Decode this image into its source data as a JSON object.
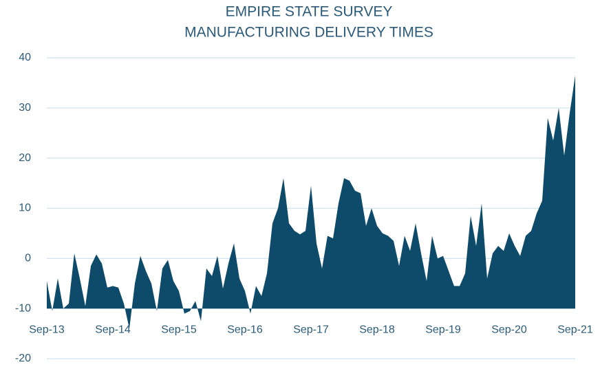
{
  "chart_data": {
    "type": "area",
    "title": [
      "EMPIRE STATE SURVEY",
      "MANUFACTURING  DELIVERY TIMES"
    ],
    "categories": [
      "Sep-13",
      null,
      null,
      null,
      null,
      null,
      null,
      null,
      null,
      null,
      null,
      null,
      "Sep-14",
      null,
      null,
      null,
      null,
      null,
      null,
      null,
      null,
      null,
      null,
      null,
      "Sep-15",
      null,
      null,
      null,
      null,
      null,
      null,
      null,
      null,
      null,
      null,
      null,
      "Sep-16",
      null,
      null,
      null,
      null,
      null,
      null,
      null,
      null,
      null,
      null,
      null,
      "Sep-17",
      null,
      null,
      null,
      null,
      null,
      null,
      null,
      null,
      null,
      null,
      null,
      "Sep-18",
      null,
      null,
      null,
      null,
      null,
      null,
      null,
      null,
      null,
      null,
      null,
      "Sep-19",
      null,
      null,
      null,
      null,
      null,
      null,
      null,
      null,
      null,
      null,
      null,
      "Sep-20",
      null,
      null,
      null,
      null,
      null,
      null,
      null,
      null,
      null,
      null,
      null,
      "Sep-21"
    ],
    "values": [
      -4.5,
      -10.5,
      -4,
      -10,
      -9,
      1,
      -4,
      -9.5,
      -1.5,
      0.8,
      -1,
      -5.8,
      -5.5,
      -5.8,
      -9,
      -14,
      -5,
      0.5,
      -2.5,
      -5,
      -10.5,
      -2,
      -0.3,
      -4.5,
      -6.5,
      -11,
      -10.5,
      -8.5,
      -12.5,
      -2,
      -3.5,
      0.5,
      -6,
      -1,
      3,
      -4,
      -6.5,
      -11,
      -5.5,
      -7.5,
      -3,
      7,
      10,
      16,
      7,
      5.5,
      4.8,
      5.5,
      14.5,
      3,
      -2,
      4.5,
      4,
      11,
      16,
      15.5,
      13.5,
      13,
      6.5,
      10,
      6.5,
      5,
      4.5,
      3.5,
      -1.5,
      4.5,
      1.5,
      7,
      1,
      -4.5,
      4.5,
      0,
      0.5,
      -2.5,
      -5.5,
      -5.5,
      -3,
      8.5,
      2.5,
      11,
      -4,
      1,
      2.5,
      1.5,
      5,
      2.5,
      0.5,
      4.5,
      5.5,
      9,
      11.5,
      28,
      23.5,
      30,
      20.5,
      29,
      36.5
    ],
    "color": "#0e4a6a",
    "ylim": [
      -20,
      40
    ],
    "yticks": [
      -20,
      -10,
      0,
      10,
      20,
      30,
      40
    ],
    "baseline": -10,
    "grid": true
  }
}
